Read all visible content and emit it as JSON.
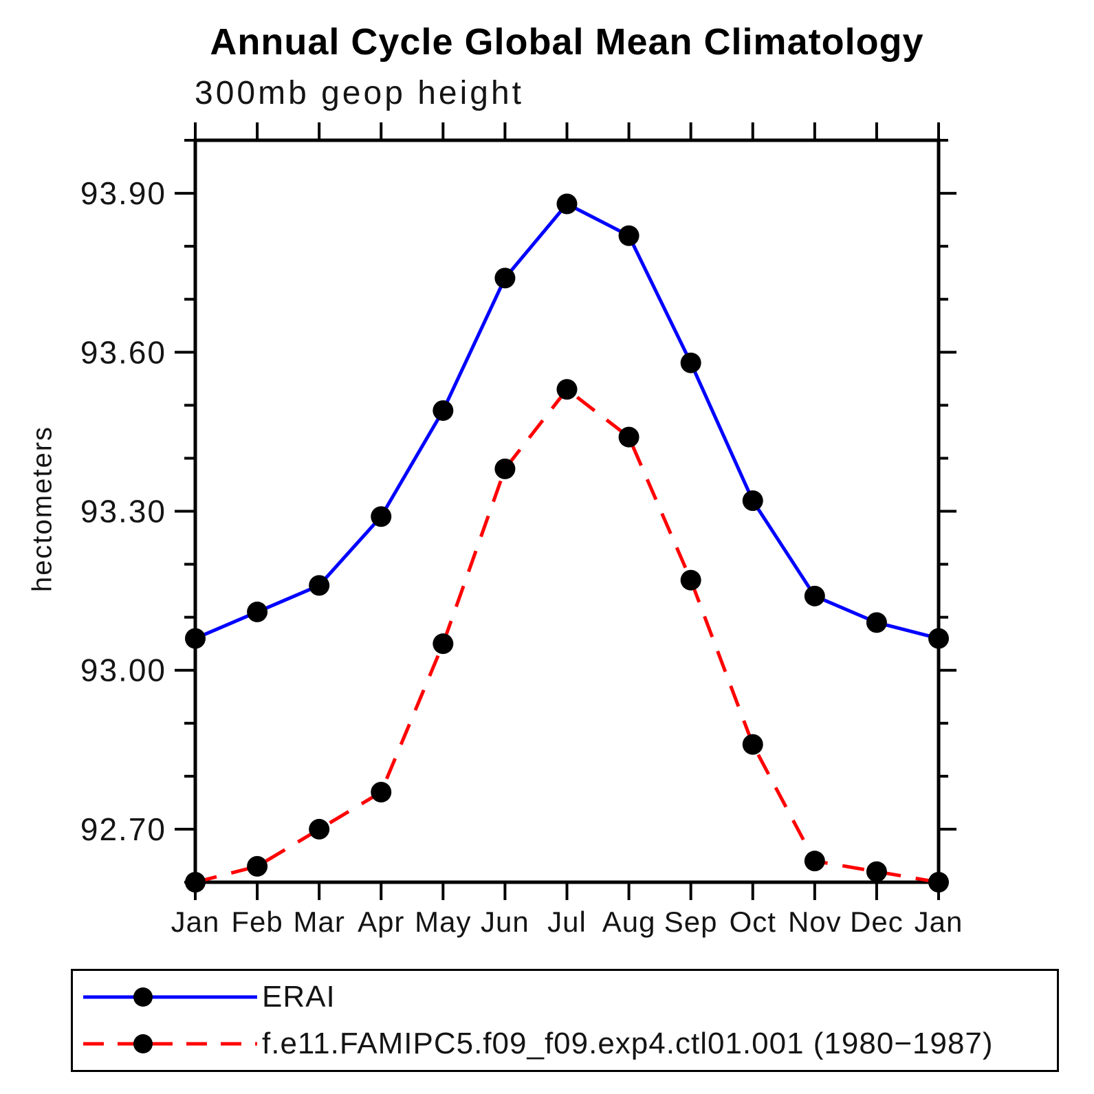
{
  "chart_data": {
    "type": "line",
    "title": "Annual Cycle Global Mean Climatology",
    "subtitle": "300mb geop height",
    "ylabel": "hectometers",
    "categories": [
      "Jan",
      "Feb",
      "Mar",
      "Apr",
      "May",
      "Jun",
      "Jul",
      "Aug",
      "Sep",
      "Oct",
      "Nov",
      "Dec",
      "Jan"
    ],
    "ylim": [
      92.6,
      94.0
    ],
    "ytick_major_values": [
      92.7,
      93.0,
      93.3,
      93.6,
      93.9
    ],
    "ytick_major_labels": [
      "92.70",
      "93.00",
      "93.30",
      "93.60",
      "93.90"
    ],
    "ytick_minor_step": 0.1,
    "grid": false,
    "legend_position": "bottom-left",
    "axis_color": "#000000",
    "series": [
      {
        "name": "ERAI",
        "color": "#0000ff",
        "line_style": "solid",
        "marker": "filled-circle",
        "marker_color": "#000000",
        "values": [
          93.06,
          93.11,
          93.16,
          93.29,
          93.49,
          93.74,
          93.88,
          93.82,
          93.58,
          93.32,
          93.14,
          93.09,
          93.06
        ]
      },
      {
        "name": "f.e11.FAMIPC5.f09_f09.exp4.ctl01.001 (1980−1987)",
        "color": "#ff0000",
        "line_style": "dashed",
        "marker": "filled-circle",
        "marker_color": "#000000",
        "values": [
          92.6,
          92.63,
          92.7,
          92.77,
          93.05,
          93.38,
          93.53,
          93.44,
          93.17,
          92.86,
          92.64,
          92.62,
          92.6
        ]
      }
    ]
  }
}
